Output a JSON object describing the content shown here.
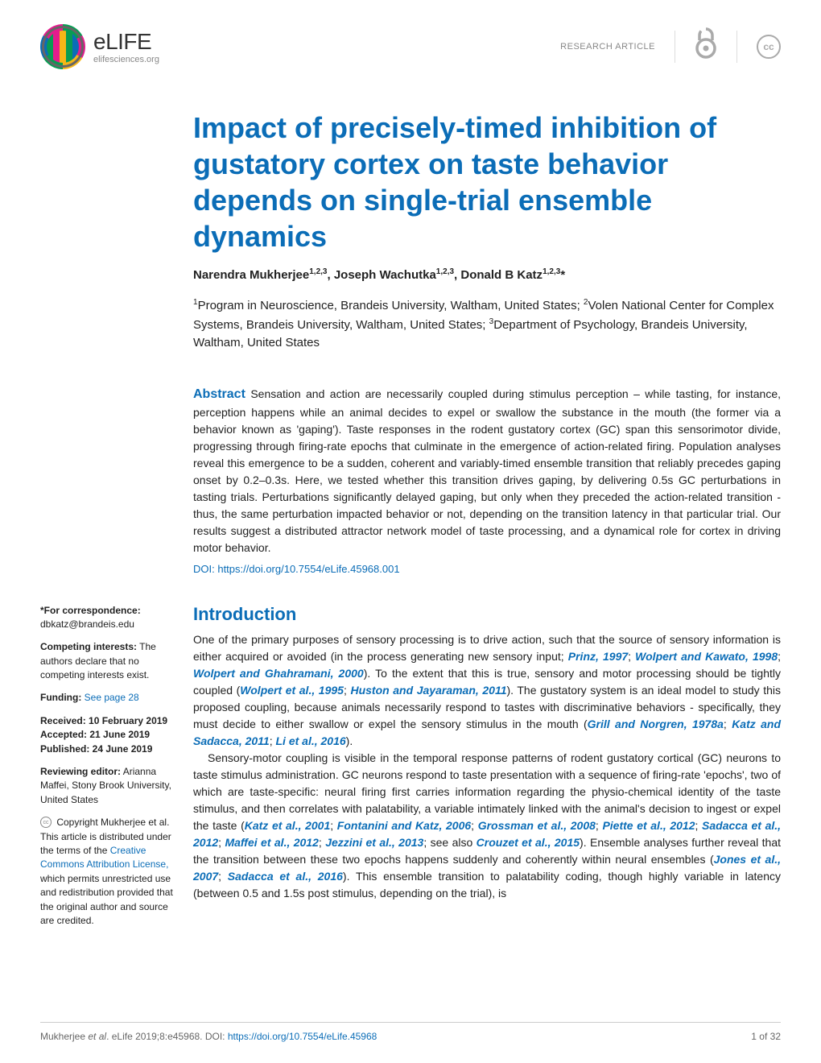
{
  "header": {
    "logo_title": "eLIFE",
    "logo_sub": "elifesciences.org",
    "research_label": "RESEARCH ARTICLE",
    "cc_text": "cc"
  },
  "article": {
    "title": "Impact of precisely-timed inhibition of gustatory cortex on taste behavior depends on single-trial ensemble dynamics",
    "authors_html": "Narendra Mukherjee<sup>1,2,3</sup>, Joseph Wachutka<sup>1,2,3</sup>, Donald B Katz<sup>1,2,3</sup>*",
    "affiliations_html": "<sup>1</sup>Program in Neuroscience, Brandeis University, Waltham, United States; <sup>2</sup>Volen National Center for Complex Systems, Brandeis University, Waltham, United States; <sup>3</sup>Department of Psychology, Brandeis University, Waltham, United States",
    "abstract_label": "Abstract",
    "abstract_text": " Sensation and action are necessarily coupled during stimulus perception – while tasting, for instance, perception happens while an animal decides to expel or swallow the substance in the mouth (the former via a behavior known as 'gaping'). Taste responses in the rodent gustatory cortex (GC) span this sensorimotor divide, progressing through firing-rate epochs that culminate in the emergence of action-related firing. Population analyses reveal this emergence to be a sudden, coherent and variably-timed ensemble transition that reliably precedes gaping onset by 0.2–0.3s. Here, we tested whether this transition drives gaping, by delivering 0.5s GC perturbations in tasting trials. Perturbations significantly delayed gaping, but only when they preceded the action-related transition - thus, the same perturbation impacted behavior or not, depending on the transition latency in that particular trial. Our results suggest a distributed attractor network model of taste processing, and a dynamical role for cortex in driving motor behavior.",
    "doi_text": "DOI: https://doi.org/10.7554/eLife.45968.001"
  },
  "sidebar": {
    "correspondence_label": "*For correspondence:",
    "correspondence_email": "dbkatz@brandeis.edu",
    "competing_label": "Competing interests:",
    "competing_text": " The authors declare that no competing interests exist.",
    "funding_label": "Funding:",
    "funding_link": " See page 28",
    "received": "Received: 10 February 2019",
    "accepted": "Accepted: 21 June 2019",
    "published": "Published: 24 June 2019",
    "reviewing_label": "Reviewing editor:",
    "reviewing_text": " Arianna Maffei, Stony Brook University, United States",
    "copyright_text": " Copyright Mukherjee et al. This article is distributed under the terms of the ",
    "cc_link": "Creative Commons Attribution License,",
    "copyright_tail": " which permits unrestricted use and redistribution provided that the original author and source are credited."
  },
  "intro": {
    "heading": "Introduction",
    "p1_a": "One of the primary purposes of sensory processing is to drive action, such that the source of sensory information is either acquired or avoided (in the process generating new sensory input; ",
    "p1_refs1": "Prinz, 1997",
    "p1_b": "; ",
    "p1_refs2": "Wolpert and Kawato, 1998",
    "p1_c": "; ",
    "p1_refs3": "Wolpert and Ghahramani, 2000",
    "p1_d": "). To the extent that this is true, sensory and motor processing should be tightly coupled (",
    "p1_refs4": "Wolpert et al., 1995",
    "p1_e": "; ",
    "p1_refs5": "Huston and Jayaraman, 2011",
    "p1_f": "). The gustatory system is an ideal model to study this proposed coupling, because animals necessarily respond to tastes with discriminative behaviors - specifically, they must decide to either swallow or expel the sensory stimulus in the mouth (",
    "p1_refs6": "Grill and Norgren, 1978a",
    "p1_g": "; ",
    "p1_refs7": "Katz and Sadacca, 2011",
    "p1_h": "; ",
    "p1_refs8": "Li et al., 2016",
    "p1_i": ").",
    "p2_a": "Sensory-motor coupling is visible in the temporal response patterns of rodent gustatory cortical (GC) neurons to taste stimulus administration. GC neurons respond to taste presentation with a sequence of firing-rate 'epochs', two of which are taste-specific: neural firing first carries information regarding the physio-chemical identity of the taste stimulus, and then correlates with palatability, a variable intimately linked with the animal's decision to ingest or expel the taste (",
    "p2_refs1": "Katz et al., 2001",
    "p2_b": "; ",
    "p2_refs2": "Fontanini and Katz, 2006",
    "p2_c": "; ",
    "p2_refs3": "Grossman et al., 2008",
    "p2_d": "; ",
    "p2_refs4": "Piette et al., 2012",
    "p2_e": "; ",
    "p2_refs5": "Sadacca et al., 2012",
    "p2_f": "; ",
    "p2_refs6": "Maffei et al., 2012",
    "p2_g": "; ",
    "p2_refs7": "Jezzini et al., 2013",
    "p2_h": "; see also ",
    "p2_refs8": "Crouzet et al., 2015",
    "p2_i": "). Ensemble analyses further reveal that the transition between these two epochs happens suddenly and coherently within neural ensembles (",
    "p2_refs9": "Jones et al., 2007",
    "p2_j": "; ",
    "p2_refs10": "Sadacca et al., 2016",
    "p2_k": "). This ensemble transition to palatability coding, though highly variable in latency (between 0.5 and 1.5s post stimulus, depending on the trial), is"
  },
  "footer": {
    "citation_a": "Mukherjee ",
    "citation_i": "et al",
    "citation_b": ". eLife 2019;8:e45968. DOI: ",
    "citation_doi": "https://doi.org/10.7554/eLife.45968",
    "page": "1 of 32"
  },
  "colors": {
    "brand_blue": "#0b6db7",
    "text": "#212121",
    "muted": "#888888"
  }
}
